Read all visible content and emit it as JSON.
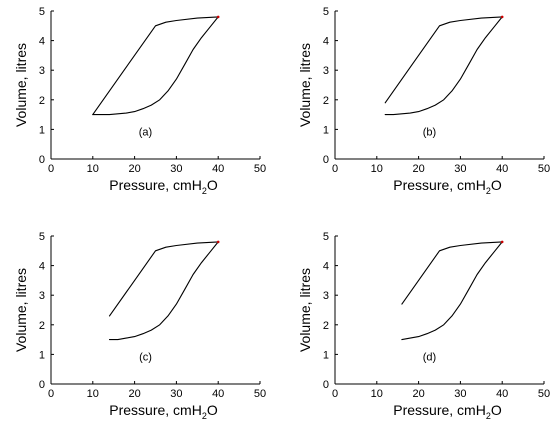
{
  "colors": {
    "axis": "#000000",
    "curve": "#000000",
    "endpoint": "#cc0000",
    "background": "#ffffff"
  },
  "chart_data": [
    {
      "type": "line",
      "panel_label": "(a)",
      "xlabel": "Pressure, cmH",
      "xlabel_sub": "2",
      "xlabel_tail": "O",
      "ylabel": "Volume, litres",
      "xlim": [
        0,
        50
      ],
      "ylim": [
        0,
        5
      ],
      "xticks": [
        "0",
        "10",
        "20",
        "30",
        "40",
        "50"
      ],
      "yticks": [
        "0",
        "1",
        "2",
        "3",
        "4",
        "5"
      ],
      "grid": false,
      "series": [
        {
          "role": "upper",
          "x": [
            10,
            17.5,
            25,
            27.5,
            30,
            35,
            40
          ],
          "y": [
            1.5,
            3.0,
            4.5,
            4.62,
            4.68,
            4.76,
            4.8
          ]
        },
        {
          "role": "lower",
          "x": [
            10,
            14,
            18,
            20,
            22,
            24,
            26,
            28,
            30,
            32,
            34,
            36,
            38,
            40
          ],
          "y": [
            1.5,
            1.5,
            1.55,
            1.6,
            1.7,
            1.82,
            2.0,
            2.3,
            2.7,
            3.2,
            3.7,
            4.1,
            4.45,
            4.8
          ]
        }
      ]
    },
    {
      "type": "line",
      "panel_label": "(b)",
      "xlabel": "Pressure, cmH",
      "xlabel_sub": "2",
      "xlabel_tail": "O",
      "ylabel": "Volume, litres",
      "xlim": [
        0,
        50
      ],
      "ylim": [
        0,
        5
      ],
      "xticks": [
        "0",
        "10",
        "20",
        "30",
        "40",
        "50"
      ],
      "yticks": [
        "0",
        "1",
        "2",
        "3",
        "4",
        "5"
      ],
      "grid": false,
      "series": [
        {
          "role": "upper",
          "x": [
            12,
            18.5,
            25,
            27.5,
            30,
            35,
            40
          ],
          "y": [
            1.9,
            3.2,
            4.5,
            4.62,
            4.68,
            4.76,
            4.8
          ]
        },
        {
          "role": "lower",
          "x": [
            12,
            14,
            18,
            20,
            22,
            24,
            26,
            28,
            30,
            32,
            34,
            36,
            38,
            40
          ],
          "y": [
            1.5,
            1.5,
            1.55,
            1.6,
            1.7,
            1.82,
            2.0,
            2.3,
            2.7,
            3.2,
            3.7,
            4.1,
            4.45,
            4.8
          ]
        }
      ]
    },
    {
      "type": "line",
      "panel_label": "(c)",
      "xlabel": "Pressure, cmH",
      "xlabel_sub": "2",
      "xlabel_tail": "O",
      "ylabel": "Volume, litres",
      "xlim": [
        0,
        50
      ],
      "ylim": [
        0,
        5
      ],
      "xticks": [
        "0",
        "10",
        "20",
        "30",
        "40",
        "50"
      ],
      "yticks": [
        "0",
        "1",
        "2",
        "3",
        "4",
        "5"
      ],
      "grid": false,
      "series": [
        {
          "role": "upper",
          "x": [
            14,
            19.5,
            25,
            27.5,
            30,
            35,
            40
          ],
          "y": [
            2.3,
            3.4,
            4.5,
            4.62,
            4.68,
            4.76,
            4.8
          ]
        },
        {
          "role": "lower",
          "x": [
            14,
            16,
            18,
            20,
            22,
            24,
            26,
            28,
            30,
            32,
            34,
            36,
            38,
            40
          ],
          "y": [
            1.5,
            1.5,
            1.55,
            1.6,
            1.7,
            1.82,
            2.0,
            2.3,
            2.7,
            3.2,
            3.7,
            4.1,
            4.45,
            4.8
          ]
        }
      ]
    },
    {
      "type": "line",
      "panel_label": "(d)",
      "xlabel": "Pressure, cmH",
      "xlabel_sub": "2",
      "xlabel_tail": "O",
      "ylabel": "Volume, litres",
      "xlim": [
        0,
        50
      ],
      "ylim": [
        0,
        5
      ],
      "xticks": [
        "0",
        "10",
        "20",
        "30",
        "40",
        "50"
      ],
      "yticks": [
        "0",
        "1",
        "2",
        "3",
        "4",
        "5"
      ],
      "grid": false,
      "series": [
        {
          "role": "upper",
          "x": [
            16,
            20.5,
            25,
            27.5,
            30,
            35,
            40
          ],
          "y": [
            2.7,
            3.6,
            4.5,
            4.62,
            4.68,
            4.76,
            4.8
          ]
        },
        {
          "role": "lower",
          "x": [
            16,
            18,
            20,
            22,
            24,
            26,
            28,
            30,
            32,
            34,
            36,
            38,
            40
          ],
          "y": [
            1.5,
            1.55,
            1.6,
            1.7,
            1.82,
            2.0,
            2.3,
            2.7,
            3.2,
            3.7,
            4.1,
            4.45,
            4.8
          ]
        }
      ]
    }
  ]
}
